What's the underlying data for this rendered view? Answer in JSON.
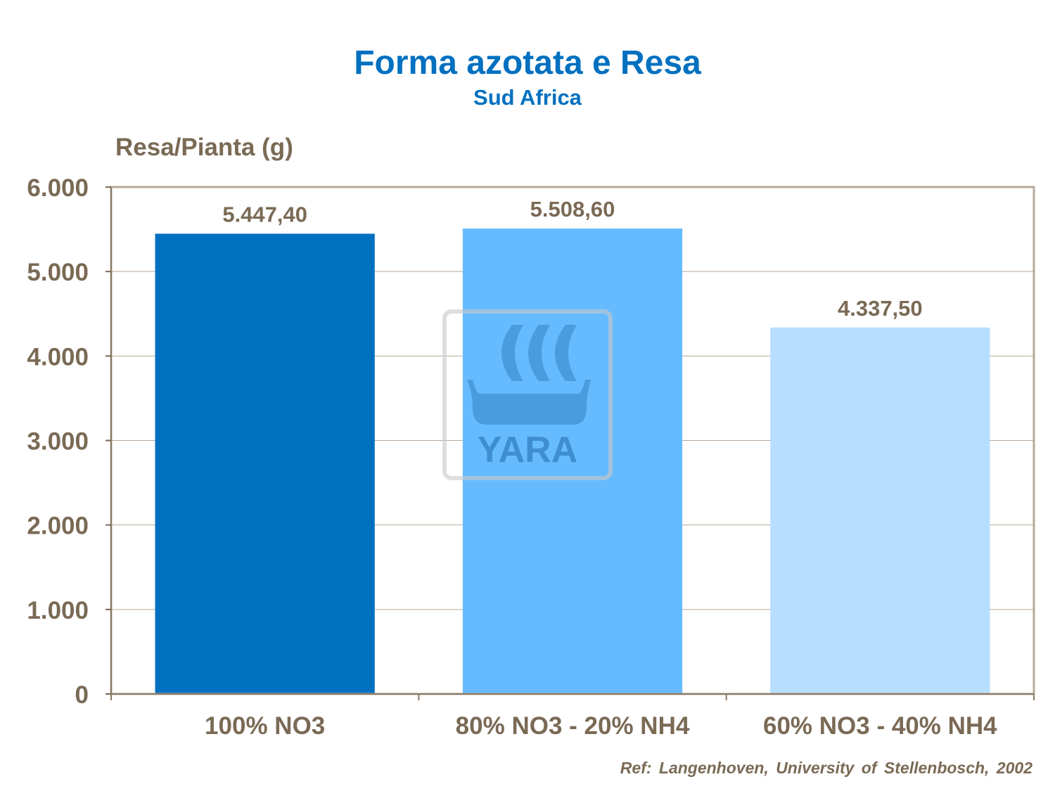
{
  "chart_data": {
    "type": "bar",
    "title": "Forma azotata e Resa",
    "subtitle": "Sud Africa",
    "ylabel": "Resa/Pianta (g)",
    "xlabel": "",
    "categories": [
      "100% NO3",
      "80% NO3 - 20% NH4",
      "60% NO3 - 40% NH4"
    ],
    "values": [
      5447.4,
      5508.6,
      4337.5
    ],
    "data_labels": [
      "5.447,40",
      "5.508,60",
      "4.337,50"
    ],
    "colors": [
      "#0070C0",
      "#66BBFF",
      "#B8DEFF"
    ],
    "ylim": [
      0,
      6000
    ],
    "yticks": [
      0,
      1000,
      2000,
      3000,
      4000,
      5000,
      6000
    ],
    "ytick_labels": [
      "0",
      "1.000",
      "2.000",
      "3.000",
      "4.000",
      "5.000",
      "6.000"
    ],
    "grid": true,
    "legend": "none",
    "watermark": "YARA",
    "footnote": "Ref: Langenhoven,  University  of Stellenbosch, 2002"
  }
}
